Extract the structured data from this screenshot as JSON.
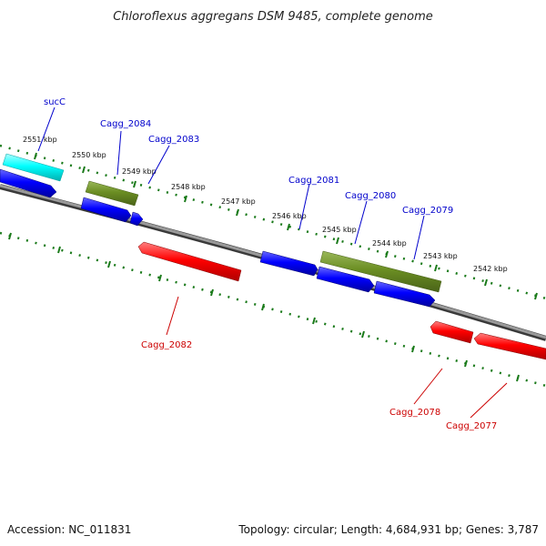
{
  "title": "Chloroflexus aggregans DSM 9485, complete genome",
  "footer": {
    "accession": "Accession: NC_011831",
    "topology": "Topology: circular; Length: 4,684,931 bp; Genes: 3,787"
  },
  "colors": {
    "cds_forward": "#0000ff",
    "cds_reverse": "#ff0000",
    "gene": "#6b8e23",
    "rna": "#00ffff",
    "backbone": "#808080",
    "ticks": "#1a7a1a",
    "label_forward": "#0000cc",
    "label_reverse": "#cc0000"
  },
  "scale_labels": [
    "2551 kbp",
    "2550 kbp",
    "2549 kbp",
    "2548 kbp",
    "2547 kbp",
    "2546 kbp",
    "2545 kbp",
    "2544 kbp",
    "2543 kbp",
    "2542 kbp"
  ],
  "gene_labels": {
    "sucC": "sucC",
    "cagg2084": "Cagg_2084",
    "cagg2083": "Cagg_2083",
    "cagg2081": "Cagg_2081",
    "cagg2080": "Cagg_2080",
    "cagg2079": "Cagg_2079",
    "cagg2082": "Cagg_2082",
    "cagg2078": "Cagg_2078",
    "cagg2077": "Cagg_2077"
  }
}
